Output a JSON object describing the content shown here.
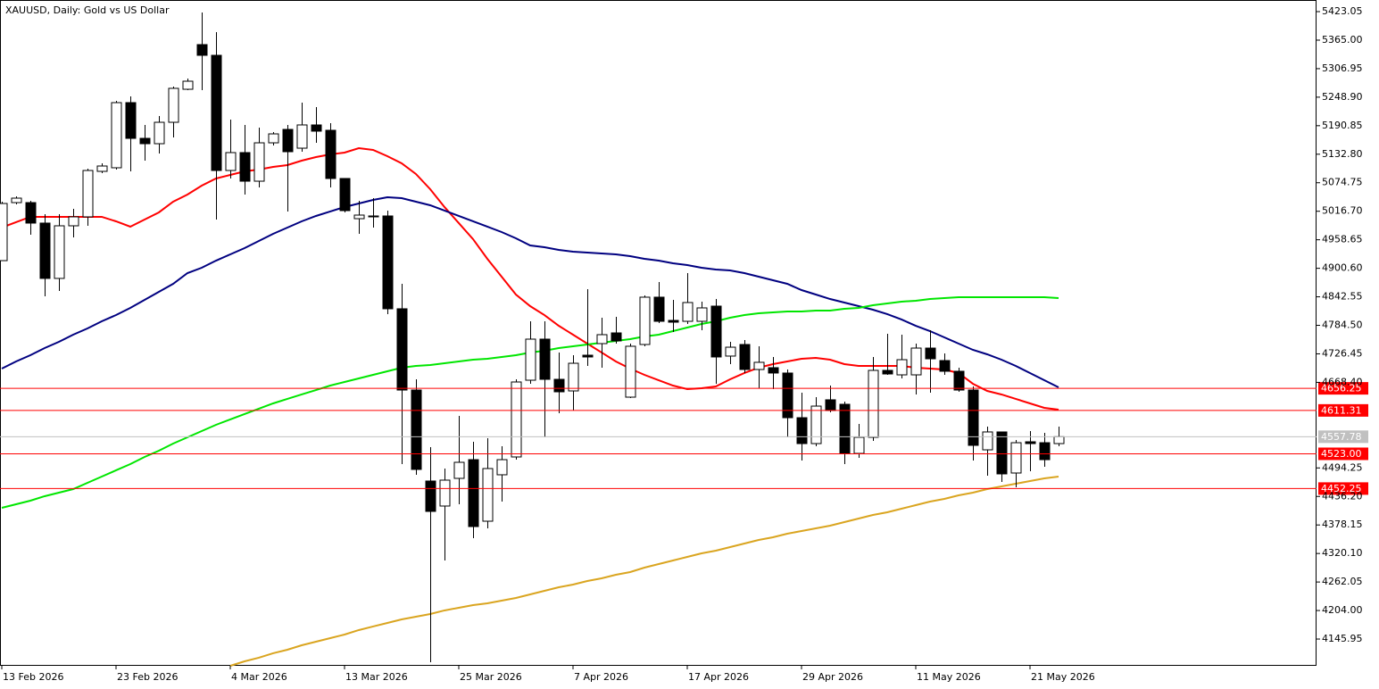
{
  "chart_data": {
    "type": "candlestick",
    "title": "XAUUSD, Daily:  Gold vs US Dollar",
    "categories": [
      "13 Feb 2026",
      null,
      null,
      null,
      null,
      null,
      null,
      null,
      "23 Feb 2026",
      null,
      null,
      null,
      null,
      null,
      null,
      null,
      "4 Mar 2026",
      null,
      null,
      null,
      null,
      null,
      null,
      null,
      "13 Mar 2026",
      null,
      null,
      null,
      null,
      null,
      null,
      null,
      "25 Mar 2026",
      null,
      null,
      null,
      null,
      null,
      null,
      null,
      "7 Apr 2026",
      null,
      null,
      null,
      null,
      null,
      null,
      null,
      "17 Apr 2026",
      null,
      null,
      null,
      null,
      null,
      null,
      null,
      "29 Apr 2026",
      null,
      null,
      null,
      null,
      null,
      null,
      null,
      "11 May 2026",
      null,
      null,
      null,
      null,
      null,
      null,
      null,
      "21 May 2026",
      null,
      null
    ],
    "open": [
      4916.2,
      5034.3,
      5034.3,
      4992.6,
      4880.0,
      4987.1,
      5005.3,
      5097.9,
      5105.2,
      5237.8,
      5165.1,
      5154.2,
      5197.8,
      5265.0,
      5355.9,
      5334.1,
      5099.7,
      5136.1,
      5077.9,
      5156.0,
      5183.3,
      5145.1,
      5192.4,
      5181.5,
      5083.4,
      5001.6,
      5005.3,
      5007.1,
      4818.2,
      4652.8,
      4467.6,
      4416.7,
      4473.0,
      4511.1,
      4385.8,
      4480.3,
      4516.6,
      4672.8,
      4756.4,
      4674.6,
      4651.0,
      4723.7,
      4747.3,
      4769.1,
      4638.3,
      4745.5,
      4841.8,
      4794.5,
      4792.7,
      4792.7,
      4823.6,
      4721.9,
      4745.5,
      4694.6,
      4698.3,
      4687.4,
      4596.5,
      4543.8,
      4632.9,
      4623.8,
      4523.8,
      4556.6,
      4692.8,
      4683.7,
      4683.7,
      4738.2,
      4712.8,
      4691.0,
      4652.8,
      4531.1,
      4567.5,
      4483.9,
      4547.5,
      4545.6,
      4543.8
    ],
    "high": [
      5036.2,
      5047.1,
      5038.0,
      5010.7,
      5010.7,
      5021.6,
      5103.4,
      5114.3,
      5241.4,
      5250.5,
      5192.4,
      5210.5,
      5270.5,
      5286.8,
      5421.3,
      5381.3,
      5203.3,
      5192.4,
      5187.0,
      5177.9,
      5192.4,
      5237.8,
      5228.7,
      5196.0,
      5083.4,
      5038.0,
      5043.4,
      5018.0,
      4869.0,
      4674.6,
      4536.5,
      4493.0,
      4600.2,
      4547.5,
      4554.7,
      4538.4,
      4674.6,
      4792.7,
      4792.7,
      4729.2,
      4723.7,
      4858.1,
      4800.0,
      4801.8,
      4747.3,
      4845.4,
      4872.6,
      4836.3,
      4890.8,
      4832.7,
      4838.1,
      4750.9,
      4754.6,
      4741.9,
      4720.1,
      4694.6,
      4647.4,
      4638.3,
      4661.9,
      4629.2,
      4583.8,
      4720.1,
      4767.3,
      4765.5,
      4747.3,
      4774.6,
      4727.4,
      4698.3,
      4660.1,
      4578.3,
      4567.5,
      4551.1,
      4569.3,
      4565.6,
      4578.3
    ],
    "low": [
      4916.2,
      5030.7,
      4968.9,
      4843.6,
      4854.5,
      4963.5,
      4987.1,
      5094.3,
      5101.5,
      5097.9,
      5119.7,
      5134.2,
      5166.9,
      5263.2,
      5263.2,
      4999.8,
      5083.4,
      5050.7,
      5065.2,
      5150.6,
      5016.2,
      5137.9,
      5156.0,
      5065.2,
      5014.4,
      4970.7,
      4983.5,
      4807.3,
      4502.1,
      4480.3,
      4098.8,
      4305.9,
      4420.3,
      4351.3,
      4371.3,
      4425.8,
      4511.1,
      4665.6,
      4556.6,
      4605.6,
      4611.1,
      4701.9,
      4698.3,
      4747.3,
      4636.5,
      4741.9,
      4789.1,
      4770.9,
      4787.3,
      4774.6,
      4665.6,
      4705.5,
      4687.4,
      4656.5,
      4654.7,
      4556.6,
      4509.3,
      4538.4,
      4607.4,
      4502.1,
      4514.8,
      4549.3,
      4683.7,
      4676.5,
      4643.8,
      4647.4,
      4683.7,
      4649.2,
      4509.3,
      4478.5,
      4465.7,
      4454.8,
      4487.5,
      4496.6,
      4538.4
    ],
    "close": [
      5032.5,
      5043.4,
      4992.6,
      4880.0,
      4987.1,
      5005.3,
      5099.7,
      5108.8,
      5237.8,
      5165.1,
      5154.2,
      5197.8,
      5266.9,
      5281.4,
      5334.1,
      5099.7,
      5136.1,
      5077.9,
      5156.0,
      5174.2,
      5137.9,
      5192.4,
      5179.7,
      5083.4,
      5018.0,
      5008.9,
      5007.1,
      4818.2,
      4652.8,
      4491.2,
      4405.8,
      4469.4,
      4505.7,
      4374.9,
      4493.0,
      4511.1,
      4669.2,
      4756.4,
      4674.6,
      4649.2,
      4707.3,
      4720.1,
      4765.5,
      4752.8,
      4741.9,
      4841.8,
      4792.7,
      4790.9,
      4830.9,
      4820.0,
      4720.1,
      4740.0,
      4694.6,
      4709.2,
      4687.4,
      4596.5,
      4543.8,
      4620.1,
      4611.1,
      4523.8,
      4556.6,
      4692.8,
      4685.5,
      4714.6,
      4738.2,
      4716.4,
      4691.0,
      4652.8,
      4540.2,
      4567.5,
      4482.1,
      4545.6,
      4543.8,
      4511.1,
      4557.78
    ],
    "up_color": "#ffffff",
    "down_color": "#000000",
    "series": [
      {
        "color": "#ff0000",
        "values": [
          4983.5,
          4994.4,
          5005.3,
          5005.3,
          5005.3,
          5005.3,
          5005.3,
          5005.3,
          4996.2,
          4985.3,
          4999.8,
          5014.4,
          5036.2,
          5050.7,
          5068.9,
          5083.4,
          5090.6,
          5097.9,
          5101.5,
          5107.0,
          5110.6,
          5119.7,
          5127.0,
          5132.4,
          5136.1,
          5145.1,
          5141.5,
          5128.8,
          5114.3,
          5092.5,
          5061.6,
          5025.3,
          4992.6,
          4959.9,
          4919.9,
          4883.6,
          4847.2,
          4823.6,
          4805.4,
          4783.6,
          4765.5,
          4747.3,
          4729.2,
          4711.0,
          4696.4,
          4683.7,
          4672.8,
          4661.9,
          4654.7,
          4656.5,
          4660.1,
          4674.6,
          4687.4,
          4698.3,
          4705.5,
          4711.0,
          4716.4,
          4718.2,
          4714.6,
          4705.5,
          4701.9,
          4701.9,
          4701.9,
          4701.9,
          4698.3,
          4696.4,
          4694.6,
          4687.4,
          4665.6,
          4651.0,
          4643.8,
          4634.7,
          4625.6,
          4616.5,
          4612.9
        ]
      },
      {
        "color": "#000080",
        "values": [
          4696.4,
          4711.0,
          4723.7,
          4738.2,
          4750.9,
          4765.5,
          4778.2,
          4792.7,
          4805.4,
          4820.0,
          4836.3,
          4852.7,
          4869.0,
          4890.8,
          4901.7,
          4916.2,
          4929.0,
          4941.7,
          4956.2,
          4970.8,
          4983.5,
          4996.2,
          5007.1,
          5016.2,
          5025.3,
          5032.5,
          5039.8,
          5045.2,
          5043.4,
          5036.2,
          5028.9,
          5018.0,
          5007.1,
          4996.2,
          4985.3,
          4974.4,
          4961.7,
          4947.1,
          4943.5,
          4938.1,
          4934.4,
          4932.6,
          4930.8,
          4929.0,
          4925.3,
          4919.9,
          4916.2,
          4910.8,
          4907.2,
          4901.7,
          4898.1,
          4896.3,
          4890.8,
          4883.6,
          4876.3,
          4869.0,
          4856.3,
          4847.2,
          4838.1,
          4830.9,
          4823.6,
          4816.3,
          4807.3,
          4796.4,
          4783.6,
          4772.7,
          4760.0,
          4747.3,
          4734.6,
          4725.5,
          4714.6,
          4701.9,
          4687.4,
          4672.8,
          4658.3
        ]
      },
      {
        "color": "#00e600",
        "values": [
          4413.1,
          4420.3,
          4427.6,
          4436.7,
          4443.9,
          4451.2,
          4463.9,
          4476.6,
          4489.4,
          4502.1,
          4516.6,
          4529.3,
          4543.8,
          4556.6,
          4569.3,
          4582.0,
          4592.9,
          4603.8,
          4614.7,
          4625.6,
          4634.7,
          4643.8,
          4652.8,
          4661.9,
          4669.2,
          4676.5,
          4683.7,
          4691.0,
          4698.3,
          4701.9,
          4703.7,
          4707.3,
          4711.0,
          4714.6,
          4716.4,
          4720.1,
          4723.7,
          4729.2,
          4732.8,
          4738.2,
          4741.9,
          4745.5,
          4749.1,
          4752.8,
          4756.4,
          4761.8,
          4765.5,
          4772.7,
          4780.0,
          4787.3,
          4792.7,
          4800.0,
          4805.4,
          4809.1,
          4810.9,
          4812.7,
          4812.7,
          4814.5,
          4814.5,
          4818.2,
          4820.0,
          4825.4,
          4829.1,
          4832.7,
          4834.5,
          4838.1,
          4840.0,
          4841.8,
          4841.8,
          4841.8,
          4841.8,
          4841.8,
          4841.8,
          4841.8,
          4840.0
        ]
      },
      {
        "color": "#daa520",
        "values": [
          null,
          null,
          null,
          null,
          null,
          null,
          null,
          null,
          null,
          null,
          null,
          null,
          null,
          null,
          null,
          null,
          4091.5,
          4100.6,
          4107.9,
          4117.0,
          4124.2,
          4133.3,
          4140.6,
          4147.8,
          4155.1,
          4164.2,
          4171.5,
          4178.7,
          4186.0,
          4191.4,
          4196.9,
          4204.2,
          4209.6,
          4215.1,
          4218.7,
          4224.1,
          4229.6,
          4236.8,
          4244.1,
          4251.4,
          4256.8,
          4264.1,
          4269.5,
          4276.8,
          4282.3,
          4291.3,
          4298.6,
          4305.9,
          4313.1,
          4320.4,
          4325.9,
          4333.1,
          4340.4,
          4347.7,
          4353.1,
          4360.4,
          4365.8,
          4371.3,
          4376.7,
          4384.0,
          4391.3,
          4398.5,
          4404.0,
          4411.2,
          4418.5,
          4425.8,
          4431.2,
          4438.5,
          4443.9,
          4451.2,
          4456.7,
          4462.1,
          4467.6,
          4473.0,
          4476.6
        ]
      }
    ],
    "levels": [
      {
        "value": 4656.25,
        "color": "#ff0000"
      },
      {
        "value": 4611.31,
        "color": "#ff0000"
      },
      {
        "value": 4557.78,
        "color": "#c0c0c0"
      },
      {
        "value": 4523,
        "label": "4523.00",
        "color": "#ff0000"
      },
      {
        "value": 4452.25,
        "color": "#ff0000"
      }
    ],
    "ylim": [
      4091.5,
      5446.7
    ],
    "yticks": [
      5423.05,
      {
        "value": 5365,
        "label": "5365.00"
      },
      5306.95,
      {
        "value": 5248.9,
        "label": "5248.90"
      },
      5190.85,
      {
        "value": 5132.8,
        "label": "5132.80"
      },
      5074.75,
      {
        "value": 5016.7,
        "label": "5016.70"
      },
      4958.65,
      {
        "value": 4900.6,
        "label": "4900.60"
      },
      4842.55,
      {
        "value": 4784.5,
        "label": "4784.50"
      },
      4726.45,
      {
        "value": 4668.4,
        "label": "4668.40"
      },
      4494.25,
      {
        "value": 4436.2,
        "label": "4436.20"
      },
      4378.15,
      {
        "value": 4320.1,
        "label": "4320.10"
      },
      4262.05,
      {
        "value": 4204,
        "label": "4204.00"
      },
      4145.95
    ],
    "grid": false
  }
}
